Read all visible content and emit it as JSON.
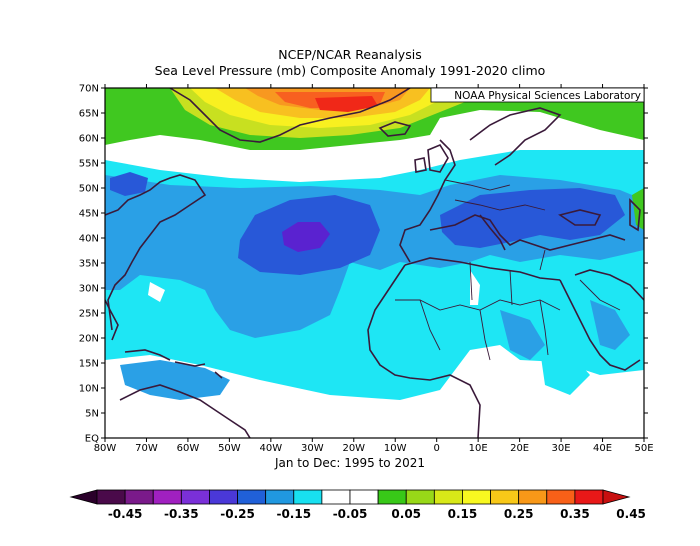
{
  "title": "NCEP/NCAR Reanalysis",
  "subtitle": "Sea Level Pressure (mb) Composite Anomaly 1991-2020 climo",
  "credit": "NOAA Physical Sciences Laboratory",
  "period": "Jan to Dec: 1995 to 2021",
  "lat_labels": [
    "EQ",
    "5N",
    "10N",
    "15N",
    "20N",
    "25N",
    "30N",
    "35N",
    "40N",
    "45N",
    "50N",
    "55N",
    "60N",
    "65N",
    "70N"
  ],
  "lon_labels": [
    "80W",
    "70W",
    "60W",
    "50W",
    "40W",
    "30W",
    "20W",
    "10W",
    "0",
    "10E",
    "20E",
    "30E",
    "40E",
    "50E"
  ],
  "colorbar": {
    "labels": [
      "-0.45",
      "-0.35",
      "-0.25",
      "-0.15",
      "-0.05",
      "0.05",
      "0.15",
      "0.25",
      "0.35",
      "0.45"
    ],
    "colors": [
      "#4a0a4a",
      "#7a1a8a",
      "#a020c0",
      "#7a30d8",
      "#4a38d8",
      "#2060d8",
      "#2098e0",
      "#18e0f0",
      "#ffffff",
      "#ffffff",
      "#38c818",
      "#98d818",
      "#d8e818",
      "#f8f820",
      "#f8c818",
      "#f89818",
      "#f86018",
      "#e81818"
    ],
    "end_left": "#2a002a",
    "end_right": "#c81010"
  },
  "colors": {
    "deep_low": "#5a22d0",
    "low": "#2858d8",
    "mid_low": "#2aa0e6",
    "weak_low": "#1ee6f4",
    "neutral": "#ffffff",
    "weak_high": "#40c820",
    "mid_high": "#c8e020",
    "high": "#f8f020",
    "strong_high": "#f89820",
    "extreme_high": "#f02818",
    "coast": "#3a1a3a"
  }
}
